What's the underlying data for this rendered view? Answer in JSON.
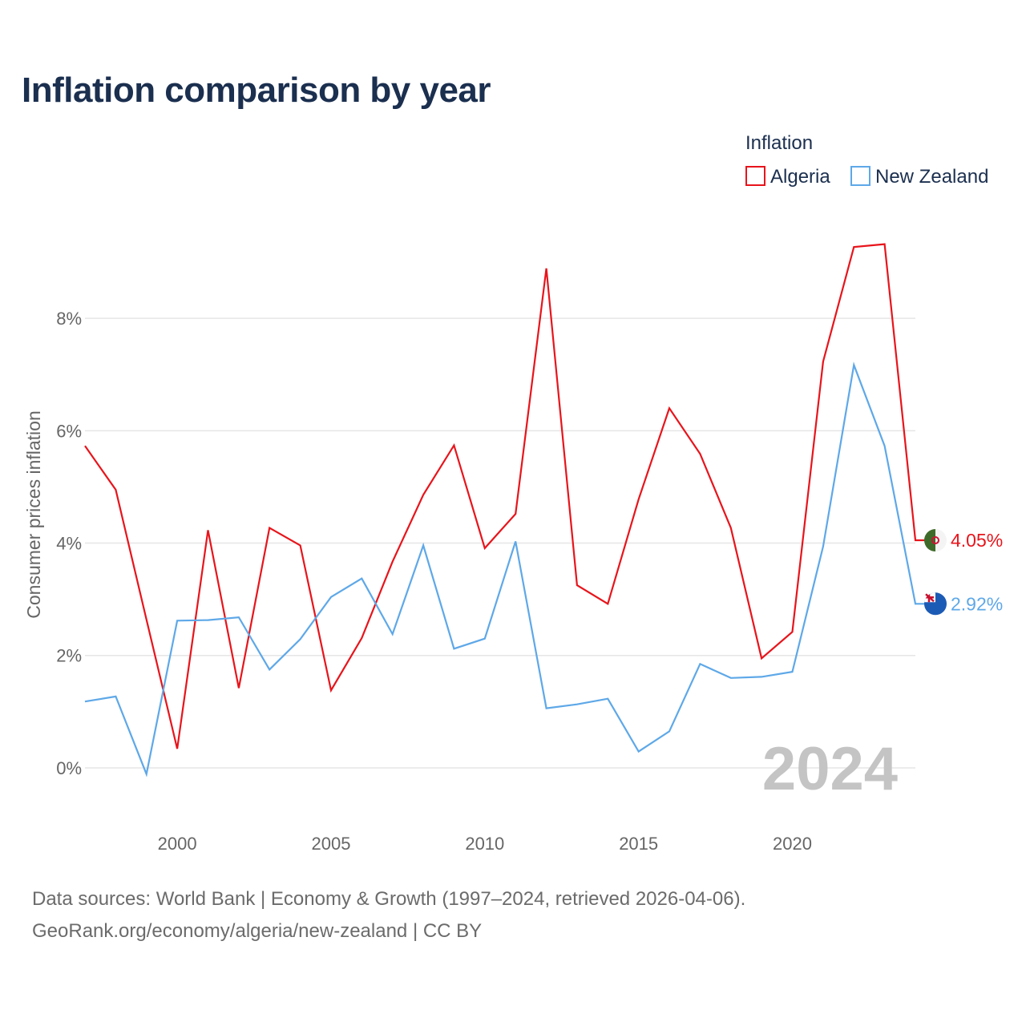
{
  "title": "Inflation comparison by year",
  "sources": {
    "line1": "Data sources: World Bank | Economy & Growth (1997–2024, retrieved 2026-04-06).",
    "line2": "GeoRank.org/economy/algeria/new-zealand | CC BY"
  },
  "chart_data": {
    "type": "line",
    "title": "Inflation comparison by year",
    "xlabel": "",
    "ylabel": "Consumer prices inflation",
    "x": [
      1997,
      1998,
      1999,
      2000,
      2001,
      2002,
      2003,
      2004,
      2005,
      2006,
      2007,
      2008,
      2009,
      2010,
      2011,
      2012,
      2013,
      2014,
      2015,
      2016,
      2017,
      2018,
      2019,
      2020,
      2021,
      2022,
      2023,
      2024
    ],
    "xlim": [
      1997,
      2024
    ],
    "ylim": [
      -0.6,
      9.6
    ],
    "x_ticks": [
      2000,
      2005,
      2010,
      2015,
      2020
    ],
    "y_ticks": [
      0,
      2,
      4,
      6,
      8
    ],
    "y_tick_labels": [
      "0%",
      "2%",
      "4%",
      "6%",
      "8%"
    ],
    "grid": true,
    "legend_title": "Inflation",
    "legend_position": "top-right",
    "watermark": "2024",
    "series": [
      {
        "name": "Algeria",
        "color": "#e8141b",
        "flag": "algeria-flag-icon",
        "end_label": "4.05%",
        "values": [
          5.73,
          4.95,
          2.64,
          0.34,
          4.23,
          1.42,
          4.27,
          3.96,
          1.38,
          2.31,
          3.67,
          4.86,
          5.74,
          3.91,
          4.52,
          8.89,
          3.25,
          2.92,
          4.78,
          6.4,
          5.59,
          4.27,
          1.95,
          2.42,
          7.23,
          9.27,
          9.32,
          4.05
        ]
      },
      {
        "name": "New Zealand",
        "color": "#5ea8e8",
        "flag": "new-zealand-flag-icon",
        "end_label": "2.92%",
        "values": [
          1.18,
          1.27,
          -0.11,
          2.62,
          2.63,
          2.68,
          1.75,
          2.29,
          3.04,
          3.37,
          2.38,
          3.96,
          2.12,
          2.3,
          4.03,
          1.06,
          1.13,
          1.23,
          0.29,
          0.65,
          1.85,
          1.6,
          1.62,
          1.71,
          3.94,
          7.17,
          5.73,
          2.92
        ]
      }
    ]
  }
}
